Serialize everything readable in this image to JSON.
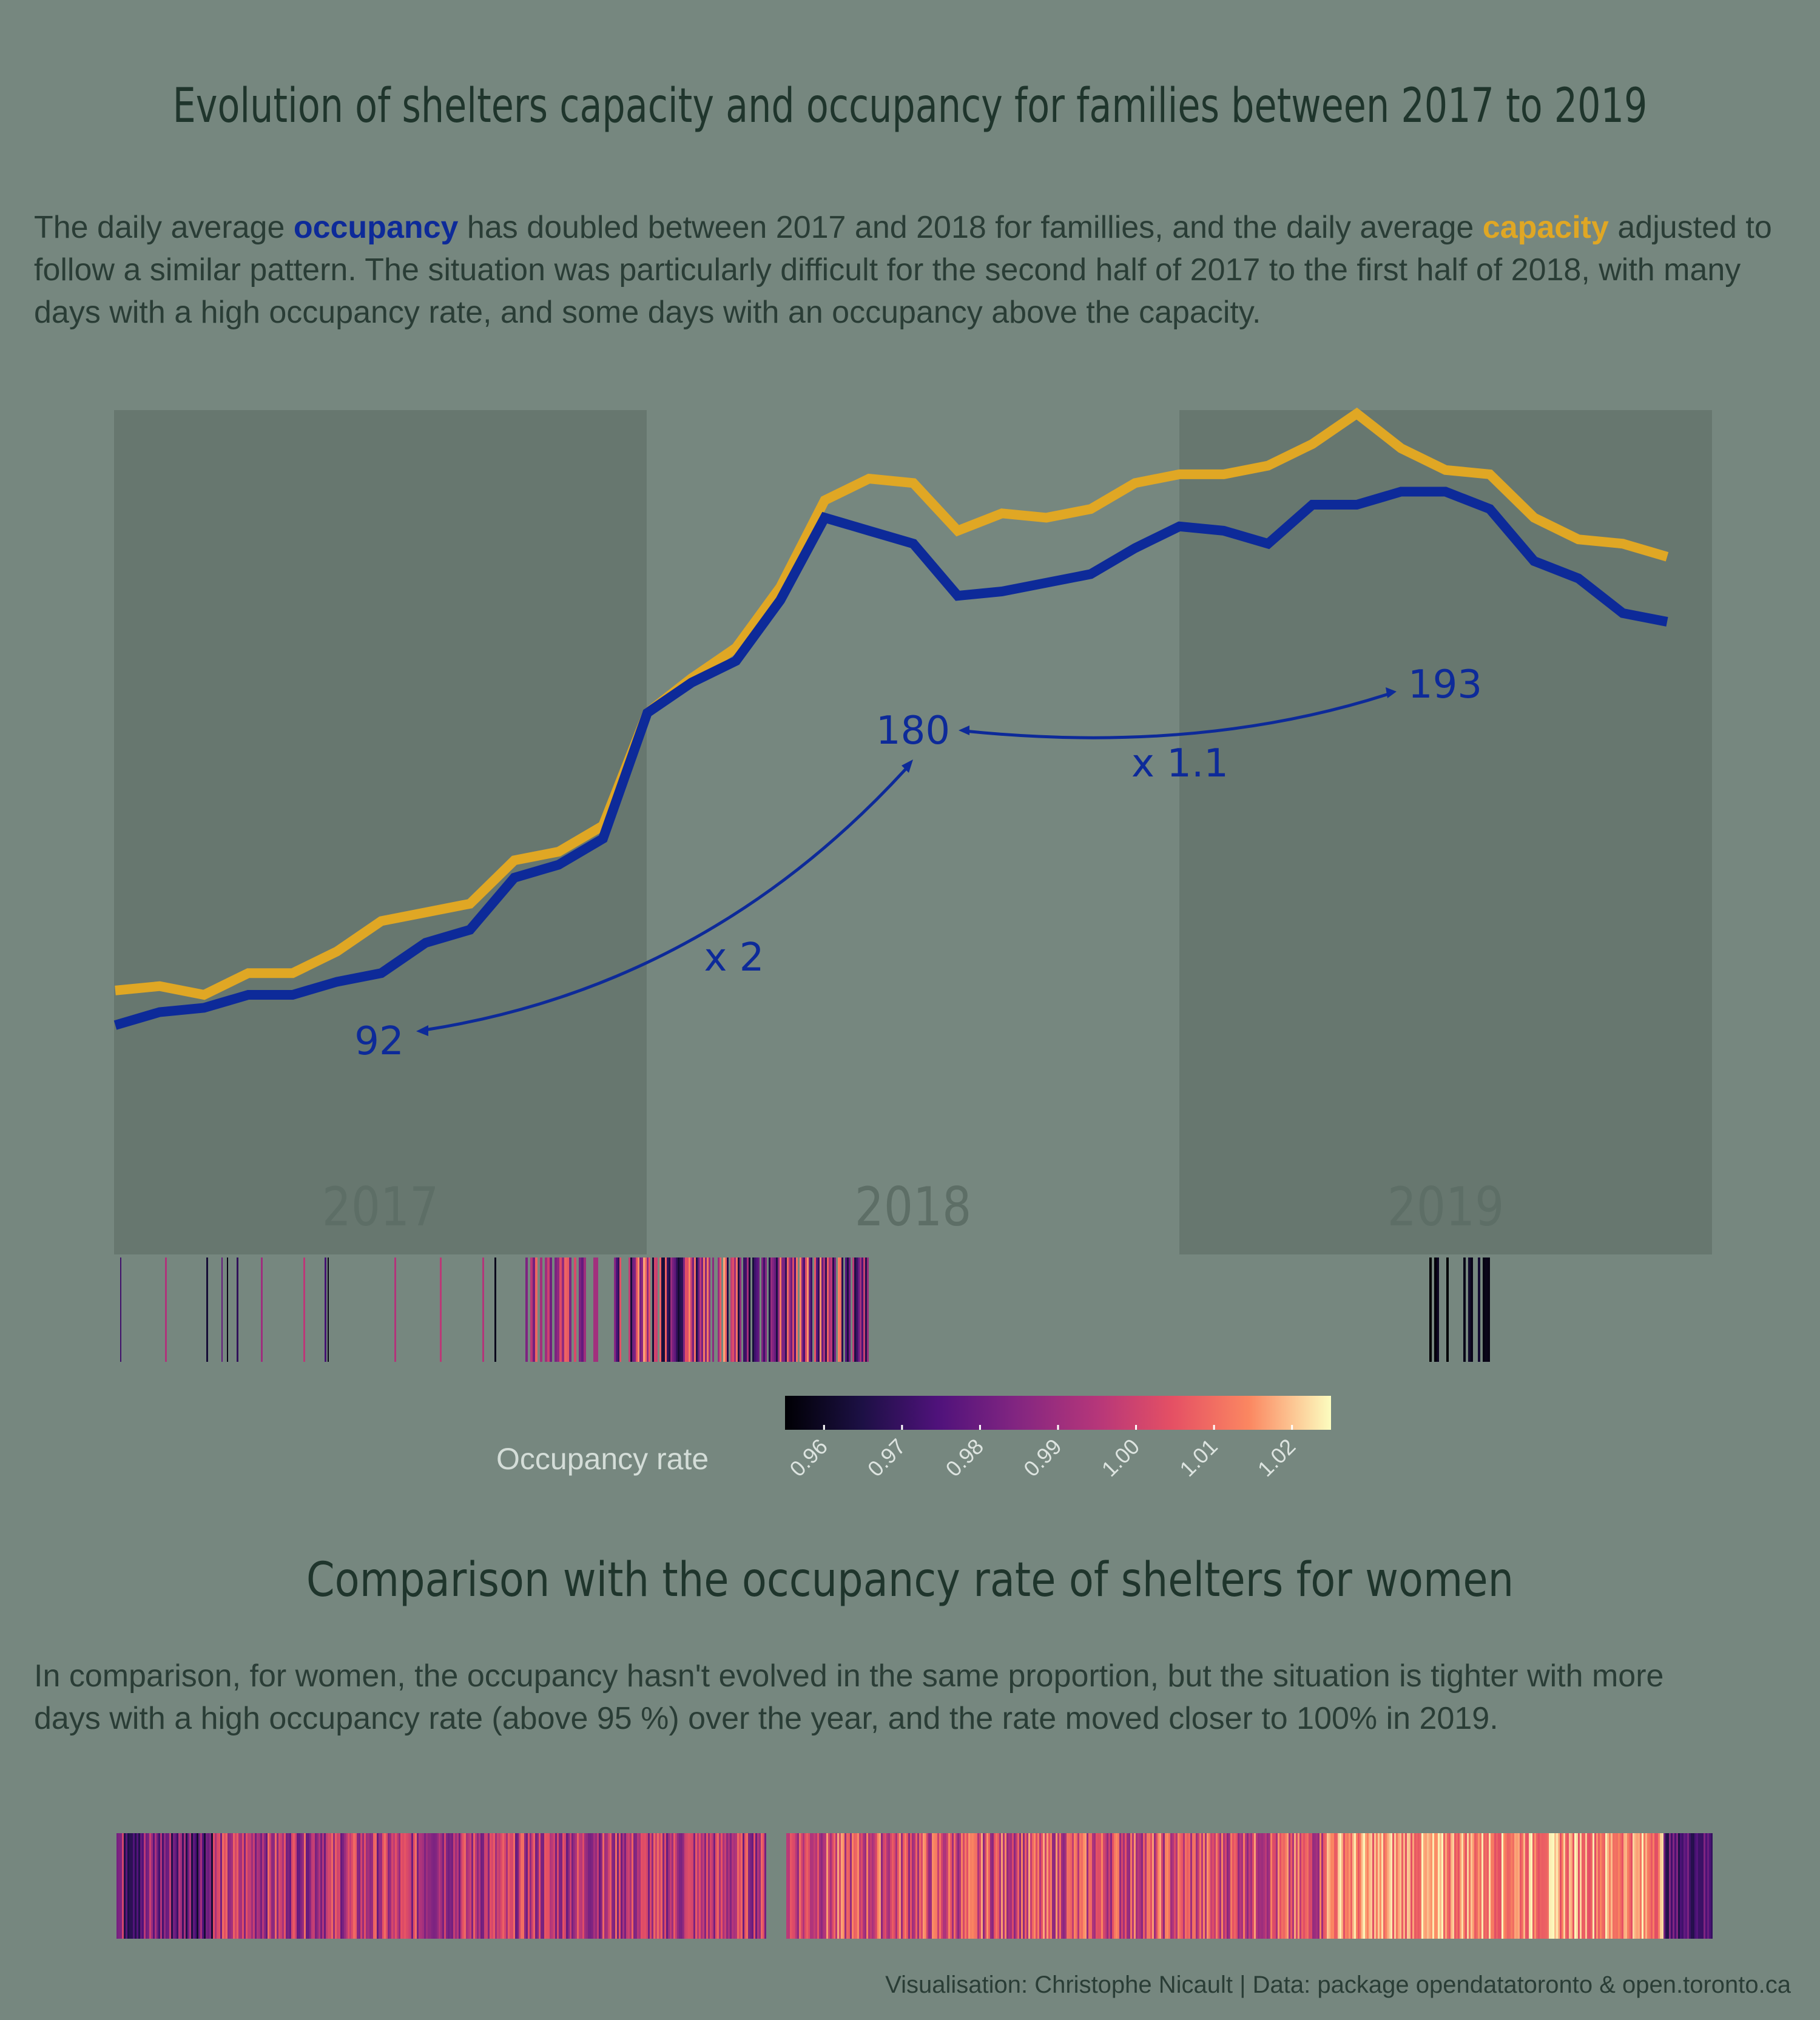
{
  "header": {
    "title": "Evolution of shelters capacity and occupancy for families between 2017 to 2019",
    "intro": {
      "p1": "The daily average ",
      "occupancy_word": "occupancy",
      "p2": " has doubled between 2017 and 2018 for famillies, and the daily average ",
      "capacity_word": "capacity",
      "p3": " adjusted to follow a similar pattern. The situation was particularly difficult for the second half of 2017 to the first half of 2018, with many days with a high occupancy rate, and some days with an occupancy above the capacity."
    }
  },
  "section2": {
    "title": "Comparison with the occupancy rate of shelters for women",
    "text": "In comparison, for women, the occupancy hasn't evolved in the same proportion, but the situation is tighter with more days with a high occupancy rate (above 95 %) over the year, and the rate moved closer to 100% in 2019."
  },
  "legend": {
    "title": "Occupancy rate",
    "ticks": [
      "0.96",
      "0.97",
      "0.98",
      "0.99",
      "1.00",
      "1.01",
      "1.02"
    ],
    "range": [
      0.955,
      1.025
    ]
  },
  "footer": {
    "caption": "Visualisation: Christophe Nicault | Data: package opendatatoronto & open.toronto.ca"
  },
  "colors": {
    "background": "#76877f",
    "year_band": "#67776f",
    "occupancy": "#0d2a99",
    "capacity": "#e0a724",
    "title": "#1f352c"
  },
  "chart_data": {
    "type": "line",
    "x": [
      "2017-01",
      "2017-02",
      "2017-03",
      "2017-04",
      "2017-05",
      "2017-06",
      "2017-07",
      "2017-08",
      "2017-09",
      "2017-10",
      "2017-11",
      "2017-12",
      "2018-01",
      "2018-02",
      "2018-03",
      "2018-04",
      "2018-05",
      "2018-06",
      "2018-07",
      "2018-08",
      "2018-09",
      "2018-10",
      "2018-11",
      "2018-12",
      "2019-01",
      "2019-02",
      "2019-03",
      "2019-04",
      "2019-05",
      "2019-06",
      "2019-07",
      "2019-08",
      "2019-09",
      "2019-10",
      "2019-11",
      "2019-12"
    ],
    "series": [
      {
        "name": "capacity",
        "values": [
          100,
          101,
          99,
          104,
          104,
          109,
          116,
          118,
          120,
          130,
          132,
          138,
          164,
          172,
          179,
          193,
          213,
          218,
          217,
          206,
          210,
          209,
          211,
          217,
          219,
          219,
          221,
          226,
          233,
          225,
          220,
          219,
          209,
          204,
          203,
          200
        ]
      },
      {
        "name": "occupancy",
        "values": [
          92,
          95,
          96,
          99,
          99,
          102,
          104,
          111,
          114,
          126,
          129,
          135,
          164,
          171,
          176,
          190,
          209,
          206,
          203,
          191,
          192,
          194,
          196,
          202,
          207,
          206,
          203,
          212,
          212,
          215,
          215,
          211,
          199,
          195,
          187,
          185
        ]
      }
    ],
    "year_labels": [
      "2017",
      "2018",
      "2019"
    ],
    "annotations": [
      {
        "label": "92",
        "value": 92
      },
      {
        "label": "180",
        "value": 180
      },
      {
        "label": "193",
        "value": 193
      },
      {
        "label": "x 2"
      },
      {
        "label": "x 1.1"
      }
    ]
  }
}
